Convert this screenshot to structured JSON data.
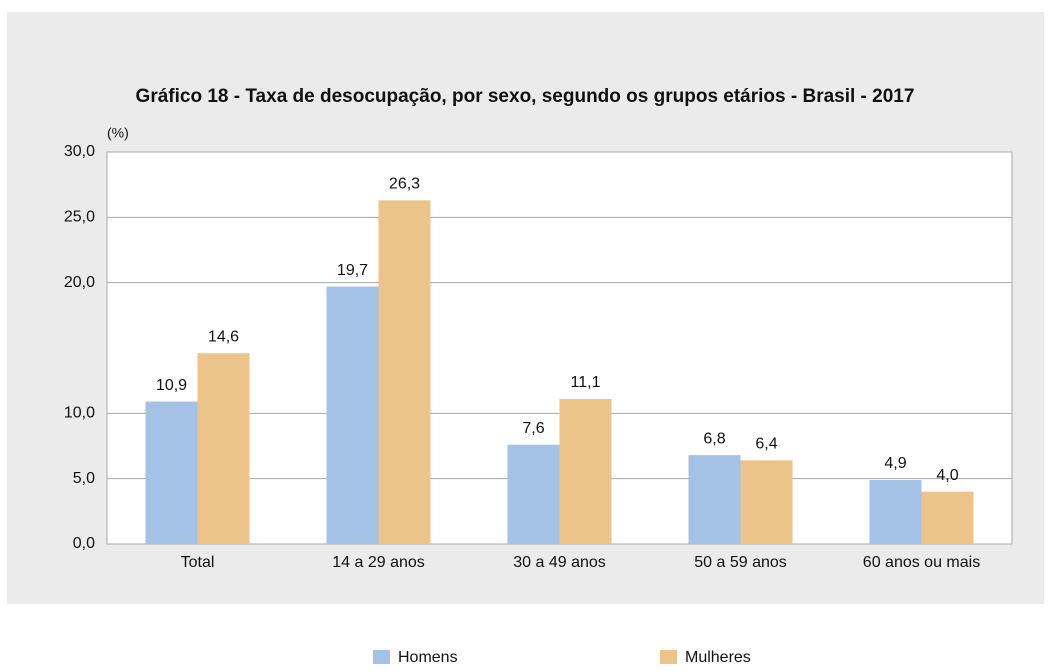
{
  "chart_data": {
    "type": "bar",
    "title": "Gráfico 18 - Taxa de desocupação, por sexo, segundo os grupos etários - Brasil - 2017",
    "y_axis_label": "(%)",
    "categories": [
      "Total",
      "14 a 29 anos",
      "30 a 49 anos",
      "50 a 59 anos",
      "60 anos ou mais"
    ],
    "series": [
      {
        "name": "Homens",
        "color": "#a4c2e6",
        "values": [
          10.9,
          19.7,
          7.6,
          6.8,
          4.9
        ],
        "value_labels": [
          "10,9",
          "19,7",
          "7,6",
          "6,8",
          "4,9"
        ]
      },
      {
        "name": "Mulheres",
        "color": "#ecc388",
        "values": [
          14.6,
          26.3,
          11.1,
          6.4,
          4.0
        ],
        "value_labels": [
          "14,6",
          "26,3",
          "11,1",
          "6,4",
          "4,0"
        ]
      }
    ],
    "ylim": [
      0,
      30
    ],
    "yticks": [
      {
        "value": 0,
        "label": "0,0"
      },
      {
        "value": 5,
        "label": "5,0"
      },
      {
        "value": 10,
        "label": "10,0"
      },
      {
        "value": 20,
        "label": "20,0"
      },
      {
        "value": 25,
        "label": "25,0"
      },
      {
        "value": 30,
        "label": "30,0"
      }
    ],
    "grid": true,
    "legend": "bottom"
  }
}
